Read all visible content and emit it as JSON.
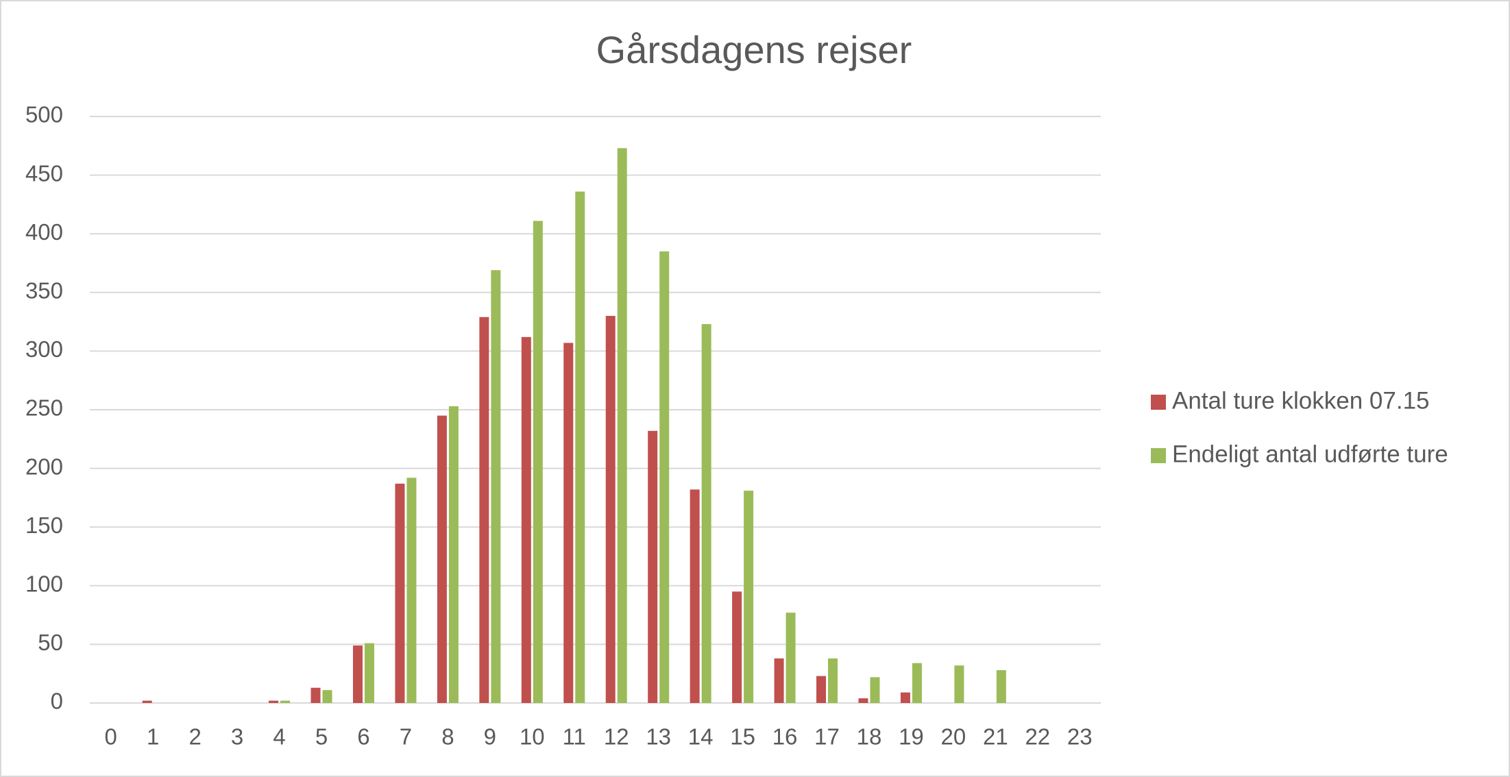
{
  "chart_data": {
    "type": "bar",
    "title": "Gårsdagens rejser",
    "categories": [
      0,
      1,
      2,
      3,
      4,
      5,
      6,
      7,
      8,
      9,
      10,
      11,
      12,
      13,
      14,
      15,
      16,
      17,
      18,
      19,
      20,
      21,
      22,
      23
    ],
    "series": [
      {
        "name": "Antal ture klokken 07.15",
        "color": "#c0504d",
        "values": [
          0,
          2,
          0,
          0,
          2,
          13,
          49,
          187,
          245,
          329,
          312,
          307,
          330,
          232,
          182,
          95,
          38,
          23,
          4,
          9,
          0,
          0,
          0,
          0
        ]
      },
      {
        "name": "Endeligt antal udførte ture",
        "color": "#9bbb59",
        "values": [
          0,
          0,
          0,
          0,
          2,
          11,
          51,
          192,
          253,
          369,
          411,
          436,
          473,
          385,
          323,
          181,
          77,
          38,
          22,
          34,
          32,
          28,
          0,
          0
        ]
      }
    ],
    "ylim": [
      0,
      500
    ],
    "yticks": [
      0,
      50,
      100,
      150,
      200,
      250,
      300,
      350,
      400,
      450,
      500
    ],
    "grid": true,
    "legend": "right"
  }
}
